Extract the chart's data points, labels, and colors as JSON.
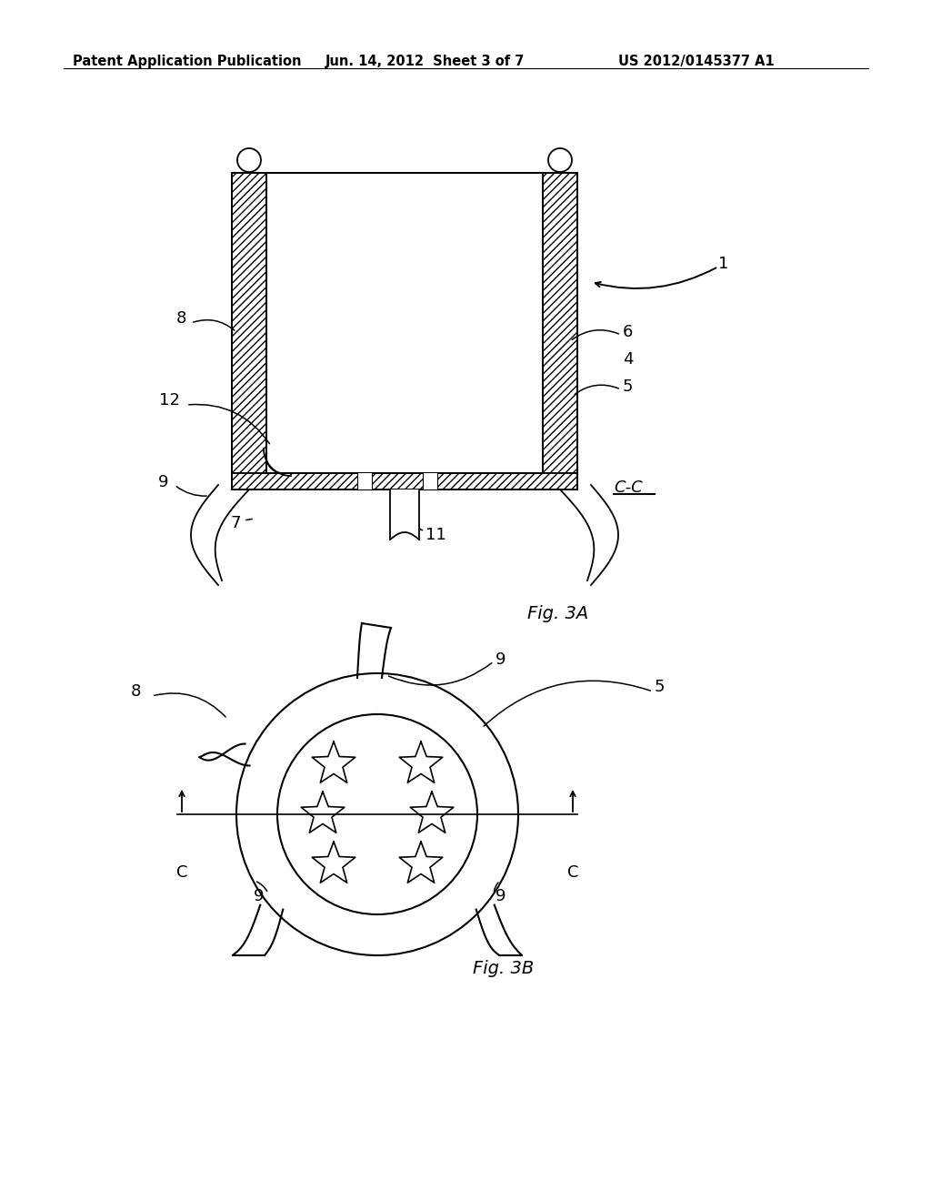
{
  "bg_color": "#ffffff",
  "header_left": "Patent Application Publication",
  "header_mid": "Jun. 14, 2012  Sheet 3 of 7",
  "header_right": "US 2012/0145377 A1",
  "fig3a_label": "Fig. 3A",
  "fig3b_label": "Fig. 3B",
  "cc_label": "C-C",
  "line_color": "#000000",
  "hatch_color": "#000000"
}
